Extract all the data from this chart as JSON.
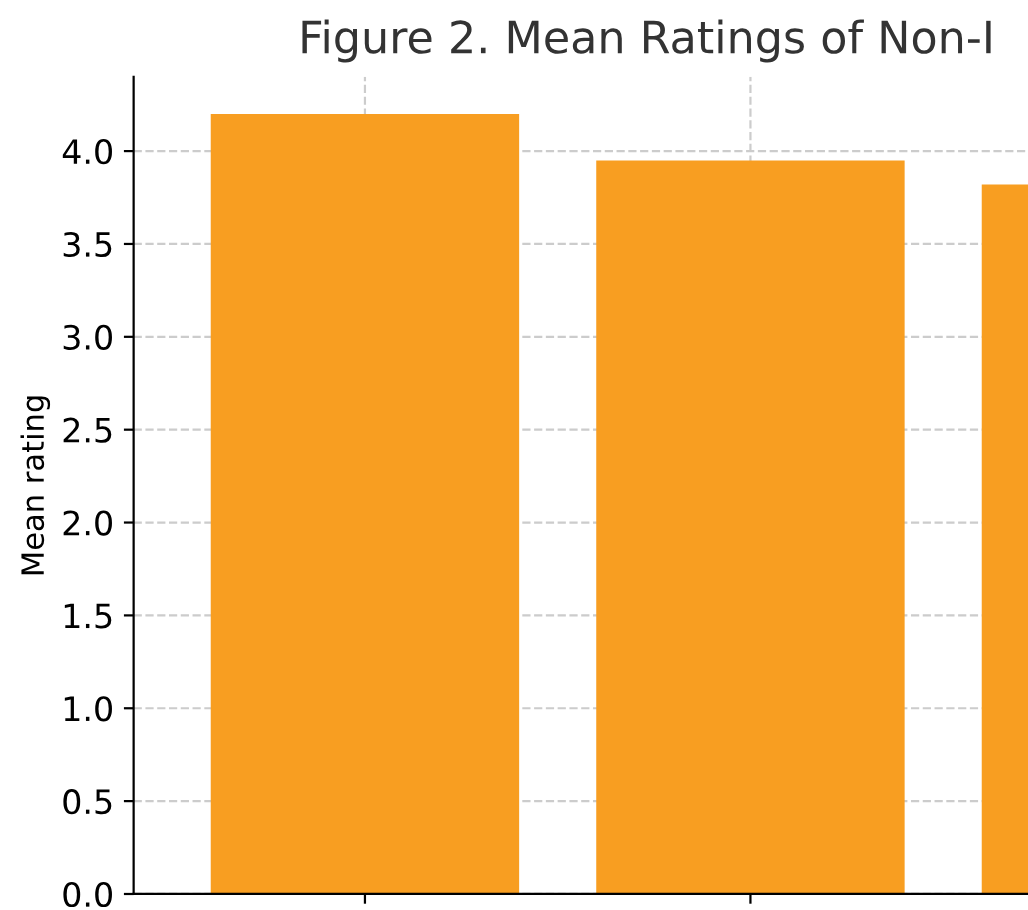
{
  "chart_data": {
    "type": "bar",
    "title": "Figure 2. Mean Ratings of Non-I",
    "ylabel": "Mean rating",
    "categories": [
      null,
      null,
      null
    ],
    "values": [
      4.2,
      3.95,
      3.82
    ],
    "color": "#f89e21",
    "ylim": [
      0,
      4.4
    ],
    "yticks": [
      {
        "value": 0,
        "label": "0.0"
      },
      0.5,
      {
        "value": 1,
        "label": "1.0"
      },
      1.5,
      {
        "value": 2,
        "label": "2.0"
      },
      2.5,
      {
        "value": 3,
        "label": "3.0"
      },
      3.5,
      {
        "value": 4,
        "label": "4.0"
      }
    ],
    "grid": true
  }
}
